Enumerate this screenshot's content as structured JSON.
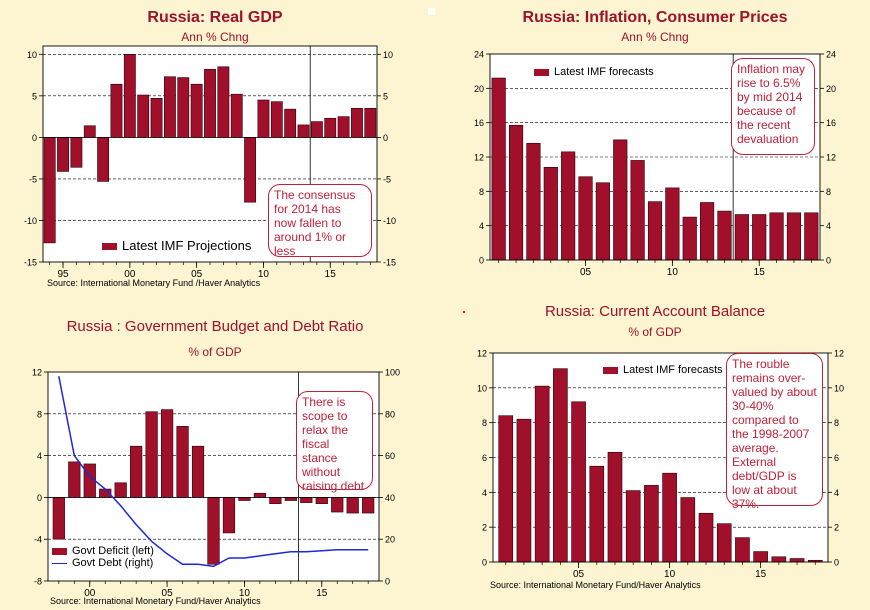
{
  "colors": {
    "bar": "#a0102a",
    "line": "#1e28d8",
    "title": "#a0102a",
    "grid": "#000000"
  },
  "decor": {
    "dot_color": "#ffffff",
    "dot2_color": "#c0203a"
  },
  "chart_data": [
    {
      "id": "gdp",
      "type": "bar",
      "title": "Russia: Real GDP",
      "subtitle": "Ann % Chng",
      "x": [
        1994,
        1995,
        1996,
        1997,
        1998,
        1999,
        2000,
        2001,
        2002,
        2003,
        2004,
        2005,
        2006,
        2007,
        2008,
        2009,
        2010,
        2011,
        2012,
        2013,
        2014,
        2015,
        2016,
        2017,
        2018
      ],
      "values": [
        -12.7,
        -4.1,
        -3.6,
        1.4,
        -5.3,
        6.4,
        10.0,
        5.1,
        4.7,
        7.3,
        7.2,
        6.4,
        8.2,
        8.5,
        5.2,
        -7.8,
        4.5,
        4.3,
        3.4,
        1.5,
        1.9,
        2.3,
        2.5,
        3.5,
        3.5
      ],
      "ylim": [
        -15,
        11
      ],
      "yticks": [
        -15,
        -10,
        -5,
        0,
        5,
        10
      ],
      "xticks": [
        {
          "x": 1995,
          "label": "95"
        },
        {
          "x": 2000,
          "label": "00"
        },
        {
          "x": 2005,
          "label": "05"
        },
        {
          "x": 2010,
          "label": "10"
        },
        {
          "x": 2015,
          "label": "15"
        }
      ],
      "forecast_from": 2014,
      "legend": [
        "Latest IMF Projections"
      ],
      "annotation": "The consensus for 2014 has now fallen to around 1% or less",
      "source": "Source:   International Monetary Fund /Haver Analytics"
    },
    {
      "id": "inflation",
      "type": "bar",
      "title": "Russia: Inflation, Consumer Prices",
      "subtitle": "Ann % Chng",
      "x": [
        2000,
        2001,
        2002,
        2003,
        2004,
        2005,
        2006,
        2007,
        2008,
        2009,
        2010,
        2011,
        2012,
        2013,
        2014,
        2015,
        2016,
        2017,
        2018
      ],
      "values": [
        21.2,
        15.7,
        13.6,
        10.8,
        12.6,
        9.7,
        9.0,
        14.0,
        11.6,
        6.8,
        8.4,
        5.0,
        6.7,
        5.7,
        5.3,
        5.3,
        5.5,
        5.5,
        5.5
      ],
      "ylim": [
        0,
        24
      ],
      "yticks": [
        0,
        4,
        8,
        12,
        16,
        20,
        24
      ],
      "xticks": [
        {
          "x": 2005,
          "label": "05"
        },
        {
          "x": 2010,
          "label": "10"
        },
        {
          "x": 2015,
          "label": "15"
        }
      ],
      "forecast_from": 2014,
      "legend": [
        "Latest IMF forecasts"
      ],
      "annotation": "Inflation may rise to 6.5% by mid 2014 because of the recent devaluation"
    },
    {
      "id": "budget",
      "type": "bar",
      "title": "Russia : Government Budget and Debt Ratio",
      "subtitle": "% of GDP",
      "x": [
        1998,
        1999,
        2000,
        2001,
        2002,
        2003,
        2004,
        2005,
        2006,
        2007,
        2008,
        2009,
        2010,
        2011,
        2012,
        2013,
        2014,
        2015,
        2016,
        2017,
        2018
      ],
      "values": [
        -4.0,
        3.4,
        3.2,
        0.8,
        1.4,
        4.9,
        8.2,
        8.4,
        6.8,
        4.9,
        -6.4,
        -3.4,
        -0.3,
        0.4,
        -0.6,
        -0.3,
        -0.5,
        -0.6,
        -1.4,
        -1.5,
        -1.5
      ],
      "ylim": [
        -8,
        12
      ],
      "yticks": [
        -8,
        -4,
        0,
        4,
        8,
        12
      ],
      "y2lim": [
        0,
        100
      ],
      "y2ticks": [
        0,
        20,
        40,
        60,
        80,
        100
      ],
      "debt": [
        98,
        60,
        50,
        44,
        36,
        27,
        19,
        13,
        8,
        8,
        7,
        11,
        11,
        12,
        13,
        14,
        14,
        14.5,
        15,
        15,
        15
      ],
      "xticks": [
        {
          "x": 2000,
          "label": "00"
        },
        {
          "x": 2005,
          "label": "05"
        },
        {
          "x": 2010,
          "label": "10"
        },
        {
          "x": 2015,
          "label": "15"
        }
      ],
      "forecast_from": 2013.5,
      "legend": [
        "Govt Deficit (left)",
        "Govt Debt (right)"
      ],
      "annotation": "There is scope to relax the fiscal stance without raising debt",
      "source": "Source: International Monetary Fund/Haver Analytics"
    },
    {
      "id": "current",
      "type": "bar",
      "title": "Russia: Current Account Balance",
      "subtitle": "% of GDP",
      "x": [
        2001,
        2002,
        2003,
        2004,
        2005,
        2006,
        2007,
        2008,
        2009,
        2010,
        2011,
        2012,
        2013,
        2014,
        2015,
        2016,
        2017,
        2018
      ],
      "values": [
        8.4,
        8.2,
        10.1,
        11.1,
        9.2,
        5.5,
        6.3,
        4.1,
        4.4,
        5.1,
        3.7,
        2.8,
        2.2,
        1.4,
        0.6,
        0.3,
        0.2,
        0.1
      ],
      "ylim": [
        0,
        12
      ],
      "yticks": [
        0,
        2,
        4,
        6,
        8,
        10,
        12
      ],
      "xticks": [
        {
          "x": 2005,
          "label": "05"
        },
        {
          "x": 2010,
          "label": "10"
        },
        {
          "x": 2015,
          "label": "15"
        }
      ],
      "legend": [
        "Latest IMF forecasts"
      ],
      "annotation": "The rouble remains over-valued by about 30-40% compared to the 1998-2007 average. External debt/GDP is low at about 37%.",
      "source": "Source: International Monetary Fund/Haver Analytics"
    }
  ]
}
